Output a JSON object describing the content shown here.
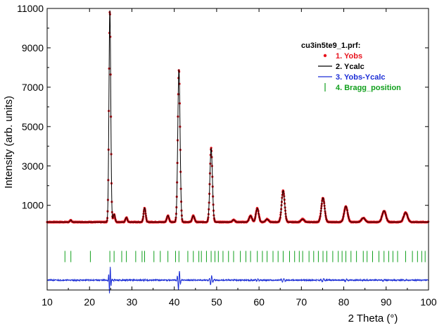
{
  "chart_data": {
    "type": "line",
    "xlabel": "2 Theta (°)",
    "ylabel": "Intensity (arb. units)",
    "xlim": [
      10,
      100
    ],
    "ylim": [
      -3300,
      11000
    ],
    "x_ticks": [
      10,
      20,
      30,
      40,
      50,
      60,
      70,
      80,
      90,
      100
    ],
    "y_ticks": [
      1000,
      3000,
      5000,
      7000,
      9000,
      11000
    ],
    "grid": false,
    "legend": {
      "title": "cu3in5te9_1.prf:",
      "position": "top-right",
      "entries": [
        {
          "label": "1. Yobs",
          "color": "#e8141e",
          "symbol": "dot"
        },
        {
          "label": "2. Ycalc",
          "color": "#000000",
          "symbol": "line"
        },
        {
          "label": "3. Yobs-Ycalc",
          "color": "#1c2ed6",
          "symbol": "line"
        },
        {
          "label": "4. Bragg_position",
          "color": "#12a01e",
          "symbol": "tick"
        }
      ]
    },
    "background": 150,
    "peaks": [
      {
        "x": 15.6,
        "y": 250
      },
      {
        "x": 24.8,
        "y": 10900
      },
      {
        "x": 25.8,
        "y": 550
      },
      {
        "x": 28.7,
        "y": 380
      },
      {
        "x": 33.0,
        "y": 870
      },
      {
        "x": 38.5,
        "y": 480
      },
      {
        "x": 41.1,
        "y": 7900
      },
      {
        "x": 44.5,
        "y": 470
      },
      {
        "x": 48.7,
        "y": 3900
      },
      {
        "x": 54.0,
        "y": 260
      },
      {
        "x": 58.0,
        "y": 470
      },
      {
        "x": 59.6,
        "y": 850
      },
      {
        "x": 61.9,
        "y": 300
      },
      {
        "x": 65.7,
        "y": 1750
      },
      {
        "x": 70.3,
        "y": 300
      },
      {
        "x": 75.1,
        "y": 1380
      },
      {
        "x": 80.5,
        "y": 950
      },
      {
        "x": 84.6,
        "y": 360
      },
      {
        "x": 89.5,
        "y": 720
      },
      {
        "x": 94.6,
        "y": 630
      }
    ],
    "bragg_positions": [
      14.2,
      15.6,
      20.2,
      24.8,
      25.8,
      27.6,
      28.7,
      30.9,
      32.4,
      33.0,
      35.2,
      36.7,
      38.5,
      40.3,
      41.1,
      43.2,
      44.5,
      45.8,
      46.4,
      47.6,
      48.7,
      49.6,
      50.4,
      51.5,
      52.8,
      54.0,
      55.6,
      56.9,
      58.0,
      59.6,
      60.8,
      61.9,
      63.3,
      64.5,
      65.7,
      67.2,
      68.4,
      69.5,
      70.3,
      71.8,
      72.9,
      74.0,
      75.1,
      76.0,
      77.4,
      78.7,
      79.6,
      80.5,
      81.7,
      83.0,
      84.6,
      85.5,
      86.8,
      88.3,
      89.5,
      90.6,
      91.6,
      92.7,
      94.6,
      96.2,
      97.4,
      98.4,
      99.2
    ],
    "difference_offset": -2800,
    "bragg_row_y": -1600
  }
}
